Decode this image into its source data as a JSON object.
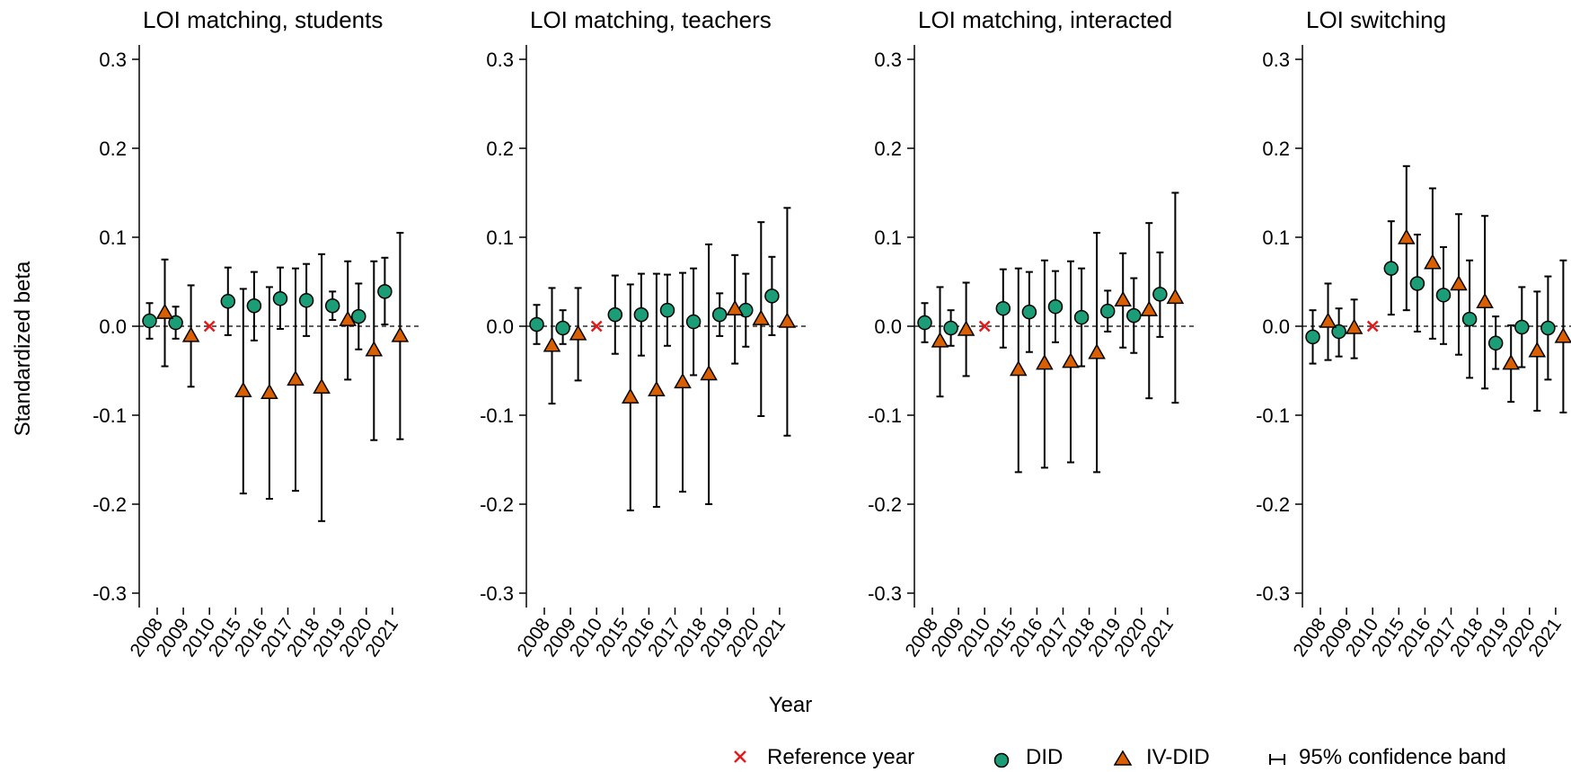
{
  "figure": {
    "ylabel": "Standardized beta",
    "xlabel": "Year"
  },
  "legend": {
    "placement": "bottom-right",
    "items": [
      {
        "key": "reference",
        "label": "Reference year",
        "marker": "x",
        "color": "#e41a1c"
      },
      {
        "key": "did",
        "label": "DID",
        "marker": "circle",
        "color": "#1b9e77"
      },
      {
        "key": "ivdid",
        "label": "IV-DID",
        "marker": "triangle",
        "color": "#d95f02"
      },
      {
        "key": "ci",
        "label": "95% confidence band",
        "marker": "errorbar",
        "color": "#000000"
      }
    ]
  },
  "chart_data": [
    {
      "type": "scatter",
      "title": "LOI matching, students",
      "categories": [
        "2008",
        "2009",
        "2010",
        "2015",
        "2016",
        "2017",
        "2018",
        "2019",
        "2020",
        "2021"
      ],
      "reference_category": "2010",
      "ylim": [
        -0.3,
        0.3
      ],
      "yticks": [
        -0.3,
        -0.2,
        -0.1,
        0.0,
        0.1,
        0.2,
        0.3
      ],
      "ytick_labels": [
        "-0.3",
        "-0.2",
        "-0.1",
        "0.0",
        "0.1",
        "0.2",
        "0.3"
      ],
      "series": [
        {
          "name": "DID",
          "values": [
            0.006,
            0.004,
            null,
            0.028,
            0.023,
            0.031,
            0.029,
            0.023,
            0.011,
            0.039
          ],
          "ci_low": [
            -0.014,
            -0.014,
            null,
            -0.01,
            -0.016,
            -0.003,
            -0.011,
            0.007,
            -0.026,
            0.002
          ],
          "ci_high": [
            0.026,
            0.022,
            null,
            0.066,
            0.061,
            0.066,
            0.07,
            0.039,
            0.048,
            0.077
          ]
        },
        {
          "name": "IV-DID",
          "values": [
            0.015,
            -0.011,
            null,
            -0.073,
            -0.075,
            -0.06,
            -0.069,
            0.007,
            -0.027,
            -0.011
          ],
          "ci_low": [
            -0.045,
            -0.068,
            null,
            -0.188,
            -0.194,
            -0.185,
            -0.219,
            -0.06,
            -0.128,
            -0.127
          ],
          "ci_high": [
            0.075,
            0.046,
            null,
            0.042,
            0.044,
            0.065,
            0.081,
            0.073,
            0.073,
            0.105
          ]
        }
      ]
    },
    {
      "type": "scatter",
      "title": "LOI matching, teachers",
      "categories": [
        "2008",
        "2009",
        "2010",
        "2015",
        "2016",
        "2017",
        "2018",
        "2019",
        "2020",
        "2021"
      ],
      "reference_category": "2010",
      "ylim": [
        -0.3,
        0.3
      ],
      "yticks": [
        -0.3,
        -0.2,
        -0.1,
        0.0,
        0.1,
        0.2,
        0.3
      ],
      "ytick_labels": [
        "-0.3",
        "-0.2",
        "-0.1",
        "0.0",
        "0.1",
        "0.2",
        "0.3"
      ],
      "series": [
        {
          "name": "DID",
          "values": [
            0.002,
            -0.002,
            null,
            0.013,
            0.013,
            0.018,
            0.005,
            0.013,
            0.018,
            0.034
          ],
          "ci_low": [
            -0.02,
            -0.02,
            null,
            -0.031,
            -0.033,
            -0.022,
            -0.055,
            -0.011,
            -0.023,
            -0.01
          ],
          "ci_high": [
            0.024,
            0.018,
            null,
            0.057,
            0.059,
            0.058,
            0.065,
            0.037,
            0.059,
            0.078
          ]
        },
        {
          "name": "IV-DID",
          "values": [
            -0.022,
            -0.009,
            null,
            -0.08,
            -0.072,
            -0.063,
            -0.054,
            0.019,
            0.008,
            0.005
          ],
          "ci_low": [
            -0.087,
            -0.061,
            null,
            -0.207,
            -0.203,
            -0.186,
            -0.2,
            -0.042,
            -0.101,
            -0.123
          ],
          "ci_high": [
            0.043,
            0.043,
            null,
            0.047,
            0.059,
            0.06,
            0.092,
            0.08,
            0.117,
            0.133
          ]
        }
      ]
    },
    {
      "type": "scatter",
      "title": "LOI matching, interacted",
      "categories": [
        "2008",
        "2009",
        "2010",
        "2015",
        "2016",
        "2017",
        "2018",
        "2019",
        "2020",
        "2021"
      ],
      "reference_category": "2010",
      "ylim": [
        -0.3,
        0.3
      ],
      "yticks": [
        -0.3,
        -0.2,
        -0.1,
        0.0,
        0.1,
        0.2,
        0.3
      ],
      "ytick_labels": [
        "-0.3",
        "-0.2",
        "-0.1",
        "0.0",
        "0.1",
        "0.2",
        "0.3"
      ],
      "series": [
        {
          "name": "DID",
          "values": [
            0.004,
            -0.002,
            null,
            0.02,
            0.016,
            0.022,
            0.01,
            0.017,
            0.012,
            0.036
          ],
          "ci_low": [
            -0.018,
            -0.022,
            null,
            -0.024,
            -0.029,
            -0.018,
            -0.045,
            -0.006,
            -0.03,
            -0.012
          ],
          "ci_high": [
            0.026,
            0.018,
            null,
            0.064,
            0.061,
            0.062,
            0.065,
            0.04,
            0.054,
            0.083
          ]
        },
        {
          "name": "IV-DID",
          "values": [
            -0.017,
            -0.004,
            null,
            -0.049,
            -0.042,
            -0.04,
            -0.03,
            0.029,
            0.018,
            0.032
          ],
          "ci_low": [
            -0.079,
            -0.056,
            null,
            -0.164,
            -0.159,
            -0.153,
            -0.164,
            -0.024,
            -0.081,
            -0.086
          ],
          "ci_high": [
            0.044,
            0.049,
            null,
            0.065,
            0.074,
            0.073,
            0.105,
            0.082,
            0.116,
            0.15
          ]
        }
      ]
    },
    {
      "type": "scatter",
      "title": "LOI switching",
      "categories": [
        "2008",
        "2009",
        "2010",
        "2015",
        "2016",
        "2017",
        "2018",
        "2019",
        "2020",
        "2021"
      ],
      "reference_category": "2010",
      "ylim": [
        -0.3,
        0.3
      ],
      "yticks": [
        -0.3,
        -0.2,
        -0.1,
        0.0,
        0.1,
        0.2,
        0.3
      ],
      "ytick_labels": [
        "-0.3",
        "-0.2",
        "-0.1",
        "0.0",
        "0.1",
        "0.2",
        "0.3"
      ],
      "series": [
        {
          "name": "DID",
          "values": [
            -0.012,
            -0.006,
            null,
            0.065,
            0.048,
            0.035,
            0.008,
            -0.019,
            -0.001,
            -0.002
          ],
          "ci_low": [
            -0.042,
            -0.034,
            null,
            0.013,
            -0.006,
            -0.02,
            -0.058,
            -0.048,
            -0.046,
            -0.06
          ],
          "ci_high": [
            0.018,
            0.02,
            null,
            0.118,
            0.103,
            0.089,
            0.074,
            0.011,
            0.044,
            0.056
          ]
        },
        {
          "name": "IV-DID",
          "values": [
            0.005,
            -0.002,
            null,
            0.099,
            0.071,
            0.047,
            0.027,
            -0.042,
            -0.028,
            -0.012
          ],
          "ci_low": [
            -0.038,
            -0.036,
            null,
            0.018,
            -0.014,
            -0.032,
            -0.07,
            -0.085,
            -0.095,
            -0.097
          ],
          "ci_high": [
            0.048,
            0.03,
            null,
            0.18,
            0.155,
            0.126,
            0.124,
            0.001,
            0.039,
            0.074
          ]
        }
      ]
    }
  ]
}
